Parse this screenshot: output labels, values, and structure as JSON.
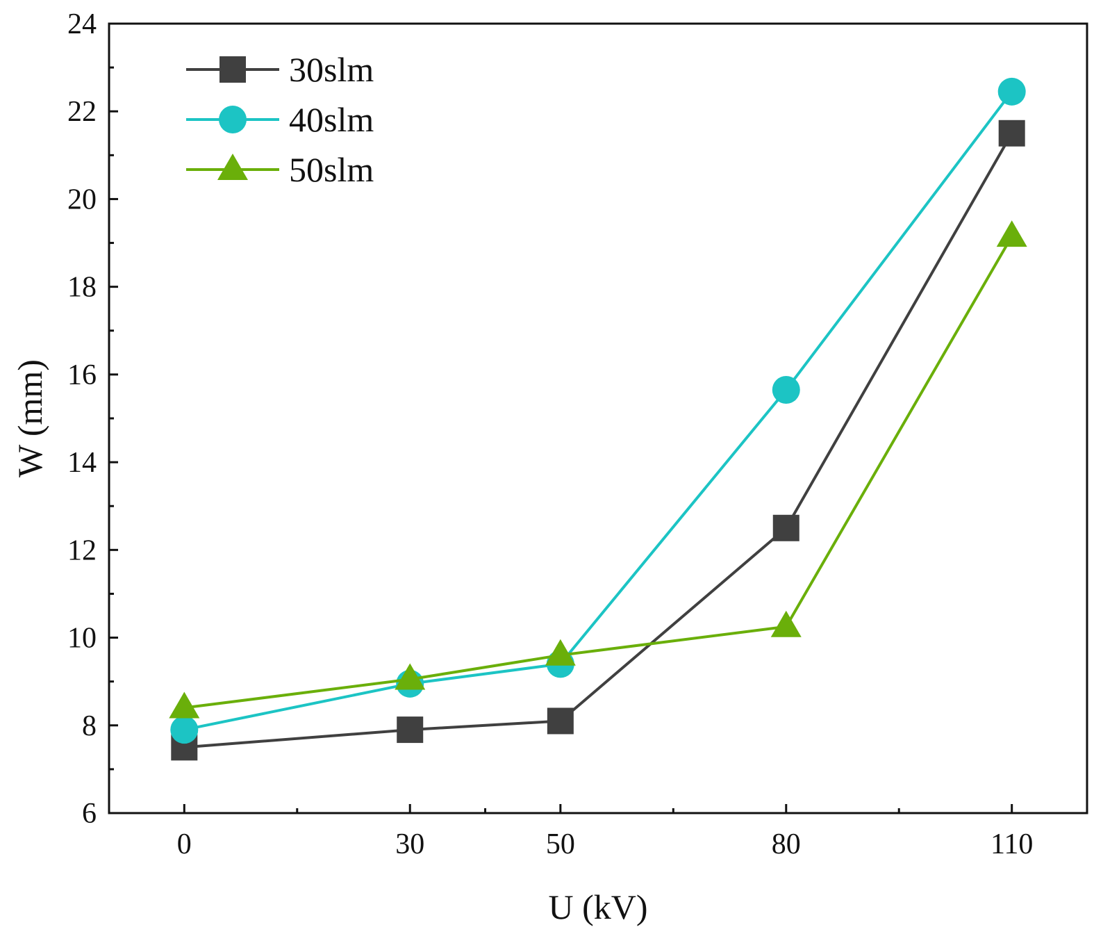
{
  "chart_data": {
    "type": "line",
    "title": "",
    "xlabel": "U (kV)",
    "ylabel": "W (mm)",
    "x": [
      0,
      30,
      50,
      80,
      110
    ],
    "x_tick_labels": [
      "0",
      "30",
      "50",
      "80",
      "110"
    ],
    "xlim": [
      -10,
      120
    ],
    "ylim": [
      6,
      24
    ],
    "y_ticks": [
      6,
      8,
      10,
      12,
      14,
      16,
      18,
      20,
      22,
      24
    ],
    "y_tick_labels": [
      "6",
      "8",
      "10",
      "12",
      "14",
      "16",
      "18",
      "20",
      "22",
      "24"
    ],
    "grid": false,
    "legend_position": "top-left",
    "series": [
      {
        "name": "30slm",
        "marker": "square",
        "color": "#404040",
        "values": [
          7.5,
          7.9,
          8.1,
          12.5,
          21.5
        ]
      },
      {
        "name": "40slm",
        "marker": "circle",
        "color": "#1CC4C4",
        "values": [
          7.9,
          8.95,
          9.4,
          15.65,
          22.45
        ]
      },
      {
        "name": "50slm",
        "marker": "triangle",
        "color": "#6AAF0A",
        "values": [
          8.4,
          9.05,
          9.6,
          10.25,
          19.15
        ]
      }
    ]
  }
}
